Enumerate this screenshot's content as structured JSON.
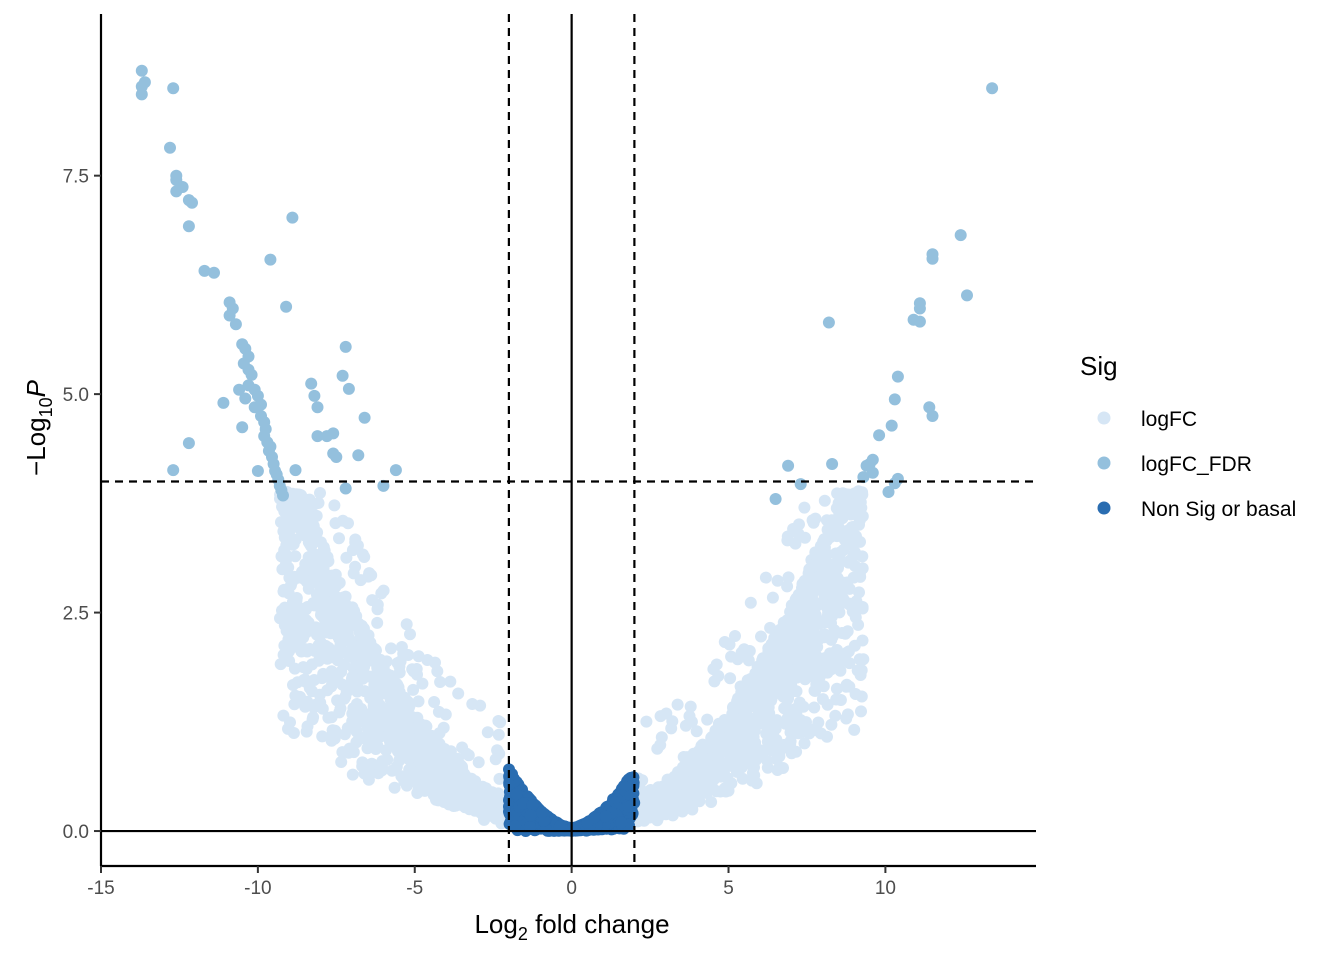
{
  "chart_data": {
    "type": "scatter",
    "subtype": "volcano",
    "title": "",
    "xlabel": {
      "base": "Log",
      "sub": "2",
      "rest": " fold change"
    },
    "ylabel": {
      "prefix": "−Log",
      "sub": "10",
      "italic": "P"
    },
    "xlim": [
      -15,
      14.8
    ],
    "ylim": [
      -0.4,
      9.35
    ],
    "x_ticks": [
      -15,
      -10,
      -5,
      0,
      5,
      10
    ],
    "x_tick_labels": [
      "-15",
      "-10",
      "-5",
      "0",
      "5",
      "10"
    ],
    "y_ticks": [
      0,
      2.5,
      5,
      7.5
    ],
    "y_tick_labels": [
      "0.0",
      "2.5",
      "5.0",
      "7.5"
    ],
    "fc_threshold_lines": [
      -2,
      2
    ],
    "p_threshold_line": 4,
    "reference_lines": {
      "x": 0,
      "y": 0
    },
    "grid": false,
    "legend": {
      "title": "Sig",
      "position": "right",
      "entries": [
        {
          "name": "logFC",
          "color": "#d6e6f5"
        },
        {
          "name": "logFC_FDR",
          "color": "#94c0dd"
        },
        {
          "name": "Non Sig or basal",
          "color": "#2a6db1"
        }
      ]
    },
    "point_colors": {
      "logFC": "#d6e6f5",
      "logFC_FDR": "#94c0dd",
      "Non Sig or basal": "#2a6db1"
    },
    "series": [
      {
        "name": "logFC_FDR",
        "points": [
          [
            -13.7,
            8.7
          ],
          [
            -13.6,
            8.57
          ],
          [
            -13.7,
            8.52
          ],
          [
            -13.7,
            8.43
          ],
          [
            -12.7,
            8.5
          ],
          [
            -12.8,
            7.82
          ],
          [
            -12.6,
            7.5
          ],
          [
            -12.6,
            7.45
          ],
          [
            -12.4,
            7.37
          ],
          [
            -12.6,
            7.32
          ],
          [
            -12.2,
            7.22
          ],
          [
            -12.1,
            7.19
          ],
          [
            -12.2,
            6.92
          ],
          [
            -11.7,
            6.41
          ],
          [
            -11.4,
            6.39
          ],
          [
            -10.9,
            6.05
          ],
          [
            -10.8,
            5.98
          ],
          [
            -10.9,
            5.9
          ],
          [
            -10.7,
            5.8
          ],
          [
            -10.5,
            5.57
          ],
          [
            -10.4,
            5.52
          ],
          [
            -10.3,
            5.43
          ],
          [
            -10.45,
            5.35
          ],
          [
            -10.3,
            5.28
          ],
          [
            -10.2,
            5.22
          ],
          [
            -10.3,
            5.1
          ],
          [
            -10.1,
            5.05
          ],
          [
            -10.0,
            4.98
          ],
          [
            -10.6,
            5.05
          ],
          [
            -10.4,
            4.95
          ],
          [
            -9.9,
            4.88
          ],
          [
            -10.1,
            4.85
          ],
          [
            -9.9,
            4.75
          ],
          [
            -9.8,
            4.68
          ],
          [
            -9.75,
            4.6
          ],
          [
            -9.8,
            4.52
          ],
          [
            -9.7,
            4.45
          ],
          [
            -9.6,
            4.4
          ],
          [
            -9.65,
            4.35
          ],
          [
            -9.55,
            4.28
          ],
          [
            -9.5,
            4.2
          ],
          [
            -9.45,
            4.12
          ],
          [
            -9.4,
            4.08
          ],
          [
            -9.35,
            4.02
          ],
          [
            -9.3,
            3.95
          ],
          [
            -9.25,
            3.9
          ],
          [
            -9.2,
            3.84
          ],
          [
            -11.1,
            4.9
          ],
          [
            -10.5,
            4.62
          ],
          [
            -10.0,
            4.12
          ],
          [
            -12.2,
            4.44
          ],
          [
            -12.7,
            4.13
          ],
          [
            -9.6,
            6.54
          ],
          [
            -9.1,
            6.0
          ],
          [
            -8.9,
            7.02
          ],
          [
            -8.8,
            4.13
          ],
          [
            -8.3,
            5.12
          ],
          [
            -8.2,
            4.98
          ],
          [
            -8.1,
            4.85
          ],
          [
            -8.1,
            4.52
          ],
          [
            -7.8,
            4.52
          ],
          [
            -7.6,
            4.55
          ],
          [
            -7.6,
            4.32
          ],
          [
            -7.2,
            5.54
          ],
          [
            -7.3,
            5.21
          ],
          [
            -7.1,
            5.06
          ],
          [
            -7.5,
            4.28
          ],
          [
            -7.2,
            3.92
          ],
          [
            -6.6,
            4.73
          ],
          [
            -6.8,
            4.3
          ],
          [
            -5.6,
            4.13
          ],
          [
            -6.0,
            3.95
          ],
          [
            13.4,
            8.5
          ],
          [
            12.4,
            6.82
          ],
          [
            12.6,
            6.13
          ],
          [
            11.5,
            6.6
          ],
          [
            11.5,
            6.55
          ],
          [
            11.1,
            6.04
          ],
          [
            11.1,
            5.98
          ],
          [
            10.9,
            5.85
          ],
          [
            11.1,
            5.83
          ],
          [
            8.2,
            5.82
          ],
          [
            10.4,
            5.2
          ],
          [
            10.3,
            4.94
          ],
          [
            11.4,
            4.85
          ],
          [
            11.5,
            4.75
          ],
          [
            10.2,
            4.64
          ],
          [
            9.8,
            4.53
          ],
          [
            9.6,
            4.25
          ],
          [
            9.5,
            4.2
          ],
          [
            9.4,
            4.18
          ],
          [
            9.6,
            4.1
          ],
          [
            9.3,
            4.05
          ],
          [
            10.4,
            4.03
          ],
          [
            10.3,
            3.98
          ],
          [
            6.9,
            4.18
          ],
          [
            8.3,
            4.2
          ],
          [
            7.3,
            3.97
          ],
          [
            10.1,
            3.88
          ],
          [
            6.5,
            3.8
          ]
        ]
      }
    ]
  }
}
